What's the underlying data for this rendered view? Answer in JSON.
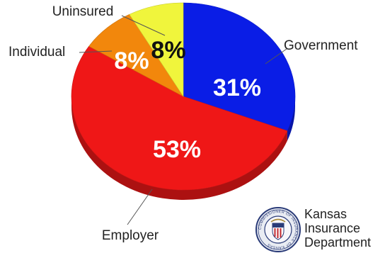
{
  "chart_data": {
    "type": "pie",
    "style": "3d",
    "start_angle": "12 o'clock",
    "direction": "clockwise",
    "slices": [
      {
        "label": "Government",
        "value": 31,
        "value_label": "31%",
        "color": "#0a1de6",
        "label_color": "#ffffff"
      },
      {
        "label": "Employer",
        "value": 53,
        "value_label": "53%",
        "color": "#ef1717",
        "label_color": "#ffffff"
      },
      {
        "label": "Individual",
        "value": 8,
        "value_label": "8%",
        "color": "#f2870c",
        "label_color": "#ffffff"
      },
      {
        "label": "Uninsured",
        "value": 8,
        "value_label": "8%",
        "color": "#f0f53c",
        "label_color": "#111111"
      }
    ]
  },
  "logo": {
    "line1": "Kansas",
    "line2": "Insurance",
    "line3": "Department",
    "seal_text": "COMMISSIONER OF INSURANCE OF KANSAS",
    "seal_text_rendered_as_picture": true
  },
  "colors": {
    "government": "#0a1de6",
    "employer": "#ef1717",
    "individual": "#f2870c",
    "uninsured": "#f0f53c"
  }
}
